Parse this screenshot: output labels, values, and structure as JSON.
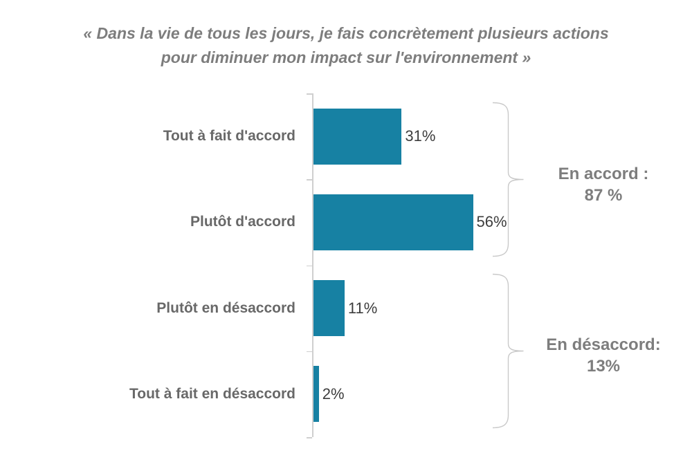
{
  "title": {
    "lines": [
      "« Dans la vie de tous les jours, je fais concrètement plusieurs actions",
      "pour diminuer mon impact sur l'environnement »"
    ]
  },
  "chart_data": {
    "type": "bar",
    "orientation": "horizontal",
    "title": "« Dans la vie de tous les jours, je fais concrètement plusieurs actions pour diminuer mon impact sur l'environnement »",
    "categories": [
      "Tout à fait d'accord",
      "Plutôt d'accord",
      "Plutôt en désaccord",
      "Tout à fait en désaccord"
    ],
    "values": [
      31,
      56,
      11,
      2
    ],
    "value_labels": [
      "31%",
      "56%",
      "11%",
      "2%"
    ],
    "annotations": [
      {
        "label": "En accord :",
        "value": "87 %",
        "rows": [
          0,
          1
        ]
      },
      {
        "label": "En désaccord:",
        "value": "13%",
        "rows": [
          2,
          3
        ]
      }
    ],
    "layout": {
      "grid": false,
      "legend": false,
      "value_axis_visible": false
    },
    "colors": {
      "bar": "#1781a3",
      "title_text": "#7d7d7d",
      "category_text": "#686868",
      "value_text": "#3d3d3d",
      "axis_and_braces": "#cfcfcf"
    }
  }
}
